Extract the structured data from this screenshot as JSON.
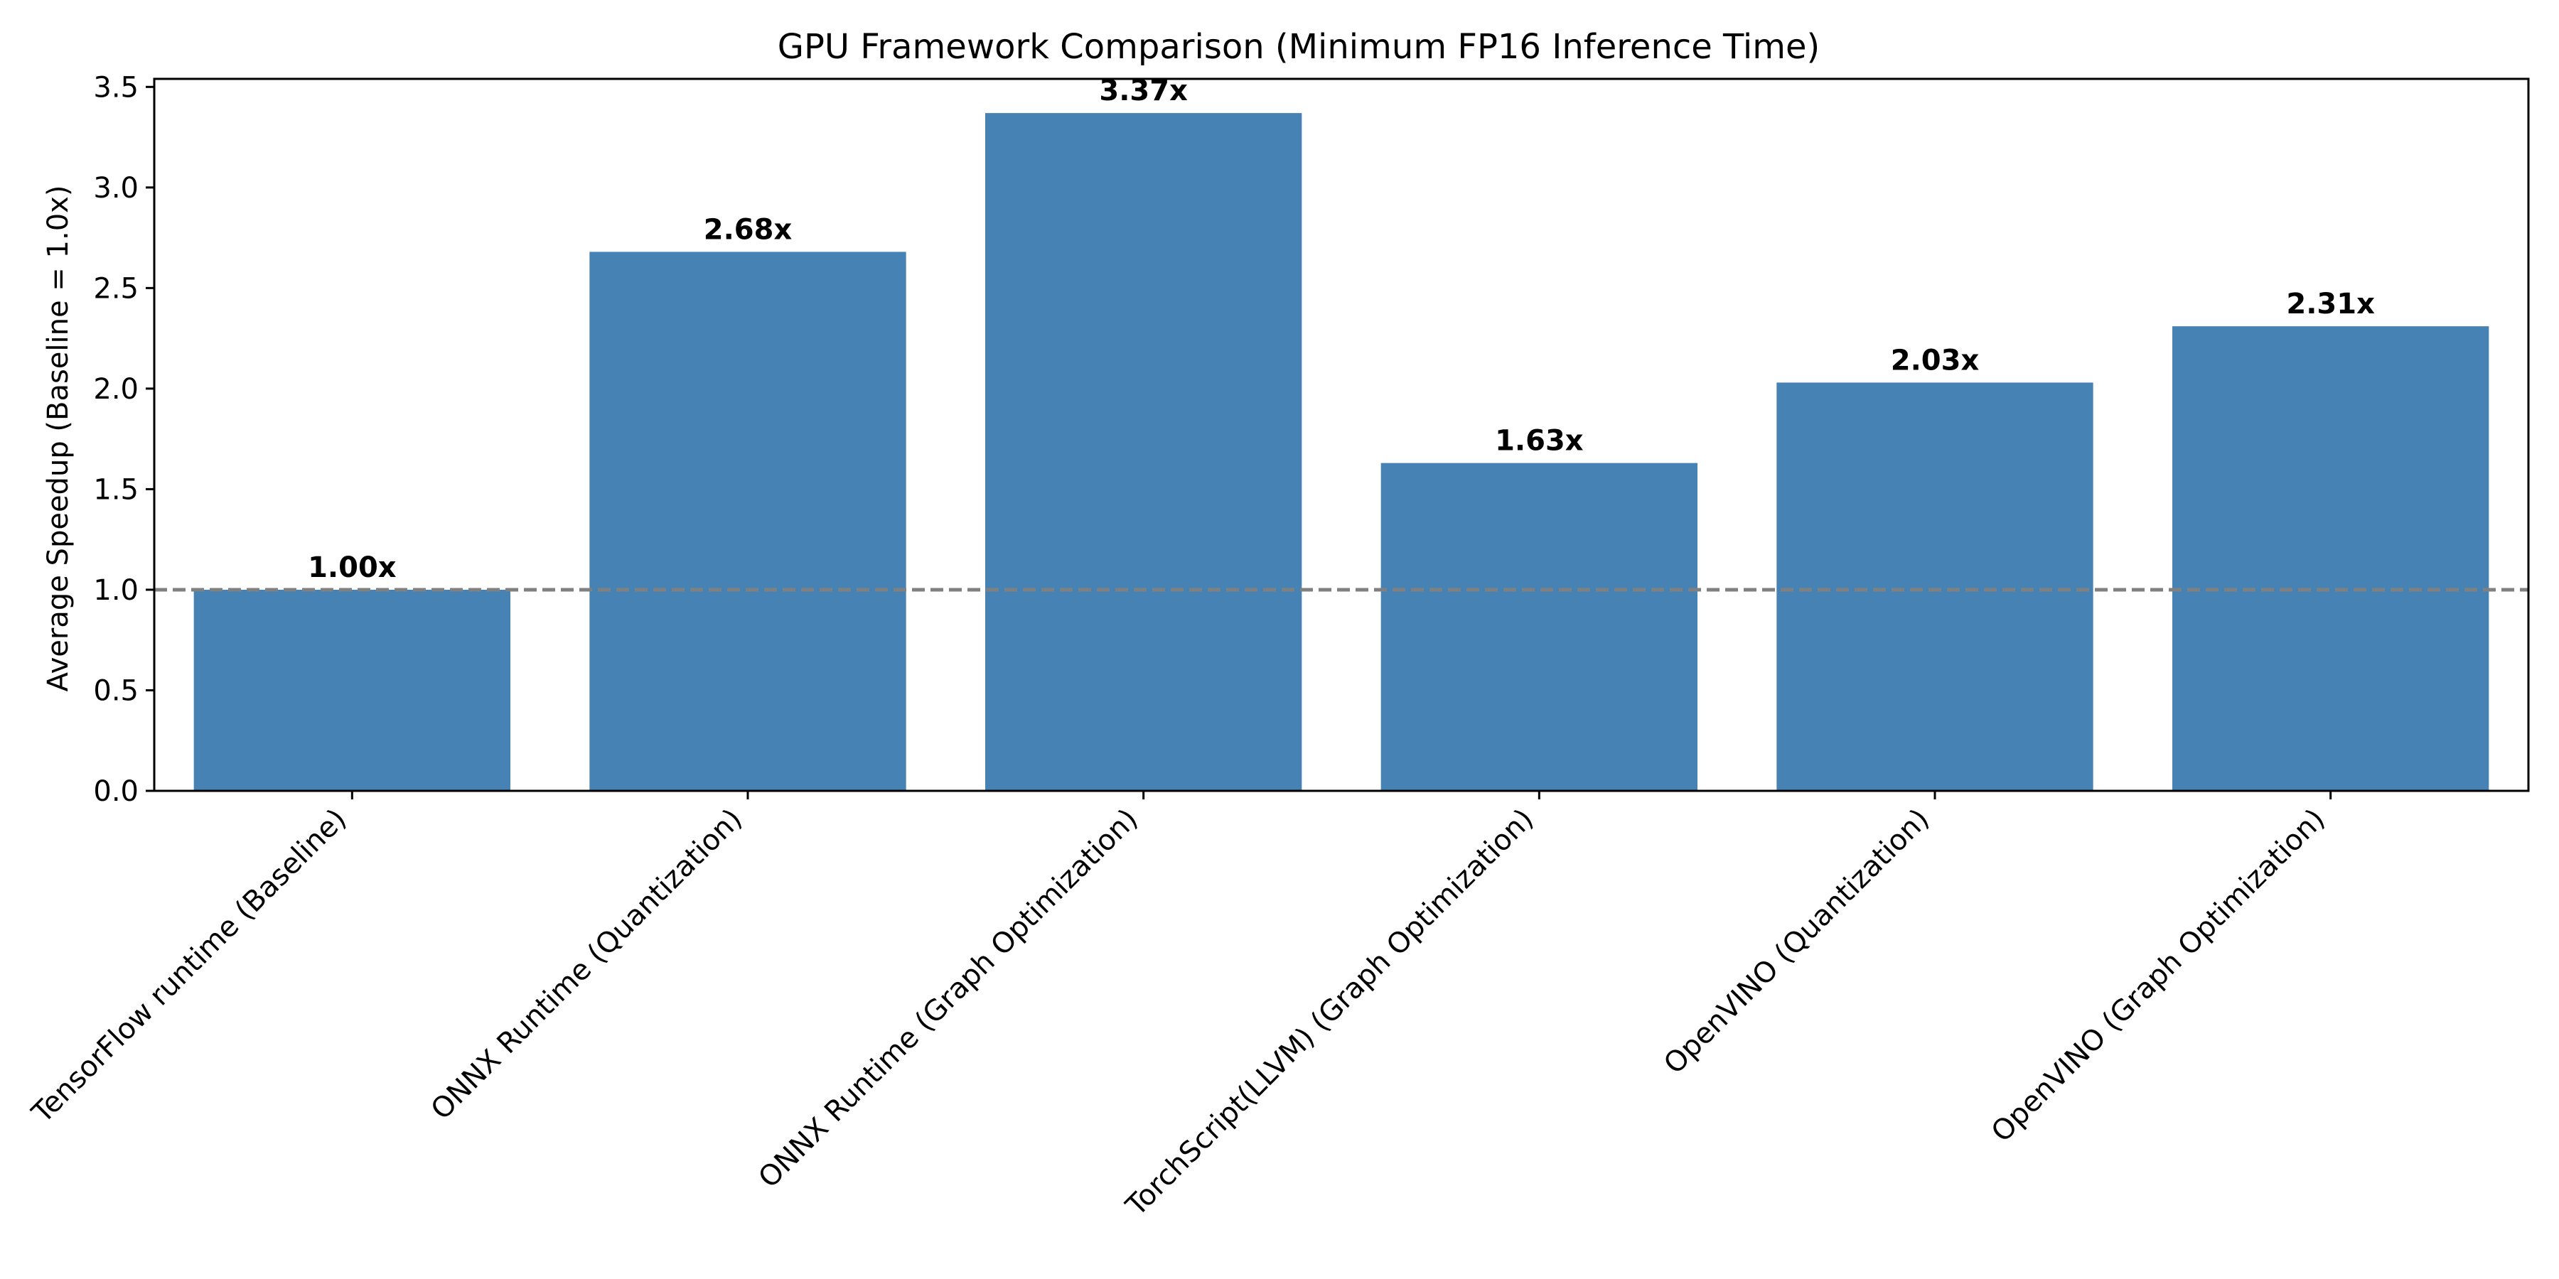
{
  "chart_data": {
    "type": "bar",
    "title": "GPU Framework Comparison (Minimum FP16 Inference Time)",
    "xlabel": "",
    "ylabel": "Average Speedup (Baseline = 1.0x)",
    "categories": [
      "TensorFlow runtime (Baseline)",
      "ONNX Runtime (Quantization)",
      "ONNX Runtime (Graph Optimization)",
      "TorchScript(LLVM) (Graph Optimization)",
      "OpenVINO (Quantization)",
      "OpenVINO (Graph Optimization)"
    ],
    "values": [
      1.0,
      2.68,
      3.37,
      1.63,
      2.03,
      2.31
    ],
    "data_labels": [
      "1.00x",
      "2.68x",
      "3.37x",
      "1.63x",
      "2.03x",
      "2.31x"
    ],
    "ylim": [
      0,
      3.54
    ],
    "yticks": [
      0.0,
      0.5,
      1.0,
      1.5,
      2.0,
      2.5,
      3.0,
      3.5
    ],
    "ytick_labels": [
      "0.0",
      "0.5",
      "1.0",
      "1.5",
      "2.0",
      "2.5",
      "3.0",
      "3.5"
    ],
    "reference_line": 1.0,
    "grid": false,
    "bar_color": "#4682b4",
    "reference_line_color": "#808080"
  }
}
